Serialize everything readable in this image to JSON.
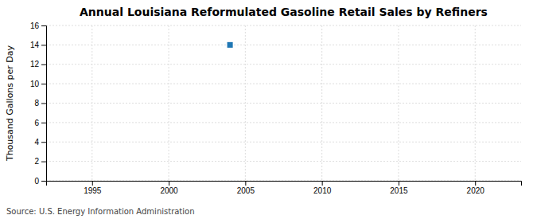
{
  "chart_data": {
    "type": "scatter",
    "title": "Annual Louisiana Reformulated Gasoline Retail Sales by Refiners",
    "ylabel": "Thousand Gallons per Day",
    "source": "Source: U.S. Energy Information Administration",
    "x": [
      2004
    ],
    "values": [
      14.0
    ],
    "marker": "square",
    "xlim": [
      1992,
      2023
    ],
    "ylim": [
      0,
      16
    ],
    "xticks": [
      1995,
      2000,
      2005,
      2010,
      2015,
      2020
    ],
    "yticks": [
      0,
      2,
      4,
      6,
      8,
      10,
      12,
      14,
      16
    ],
    "grid": true
  }
}
